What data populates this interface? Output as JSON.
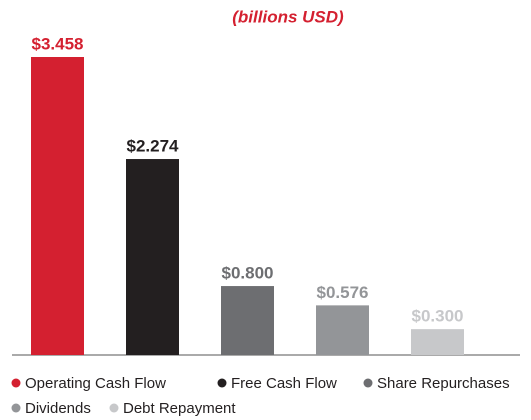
{
  "chart_data": {
    "type": "bar",
    "subtitle": "(billions USD)",
    "categories": [
      "Operating Cash Flow",
      "Free Cash Flow",
      "Share Repurchases",
      "Dividends",
      "Debt Repayment"
    ],
    "values": [
      3.458,
      2.274,
      0.8,
      0.576,
      0.3
    ],
    "value_labels": [
      "$3.458",
      "$2.274",
      "$0.800",
      "$0.576",
      "$0.300"
    ],
    "colors": [
      "#d42030",
      "#231f20",
      "#6d6e71",
      "#939598",
      "#c7c8ca"
    ]
  }
}
